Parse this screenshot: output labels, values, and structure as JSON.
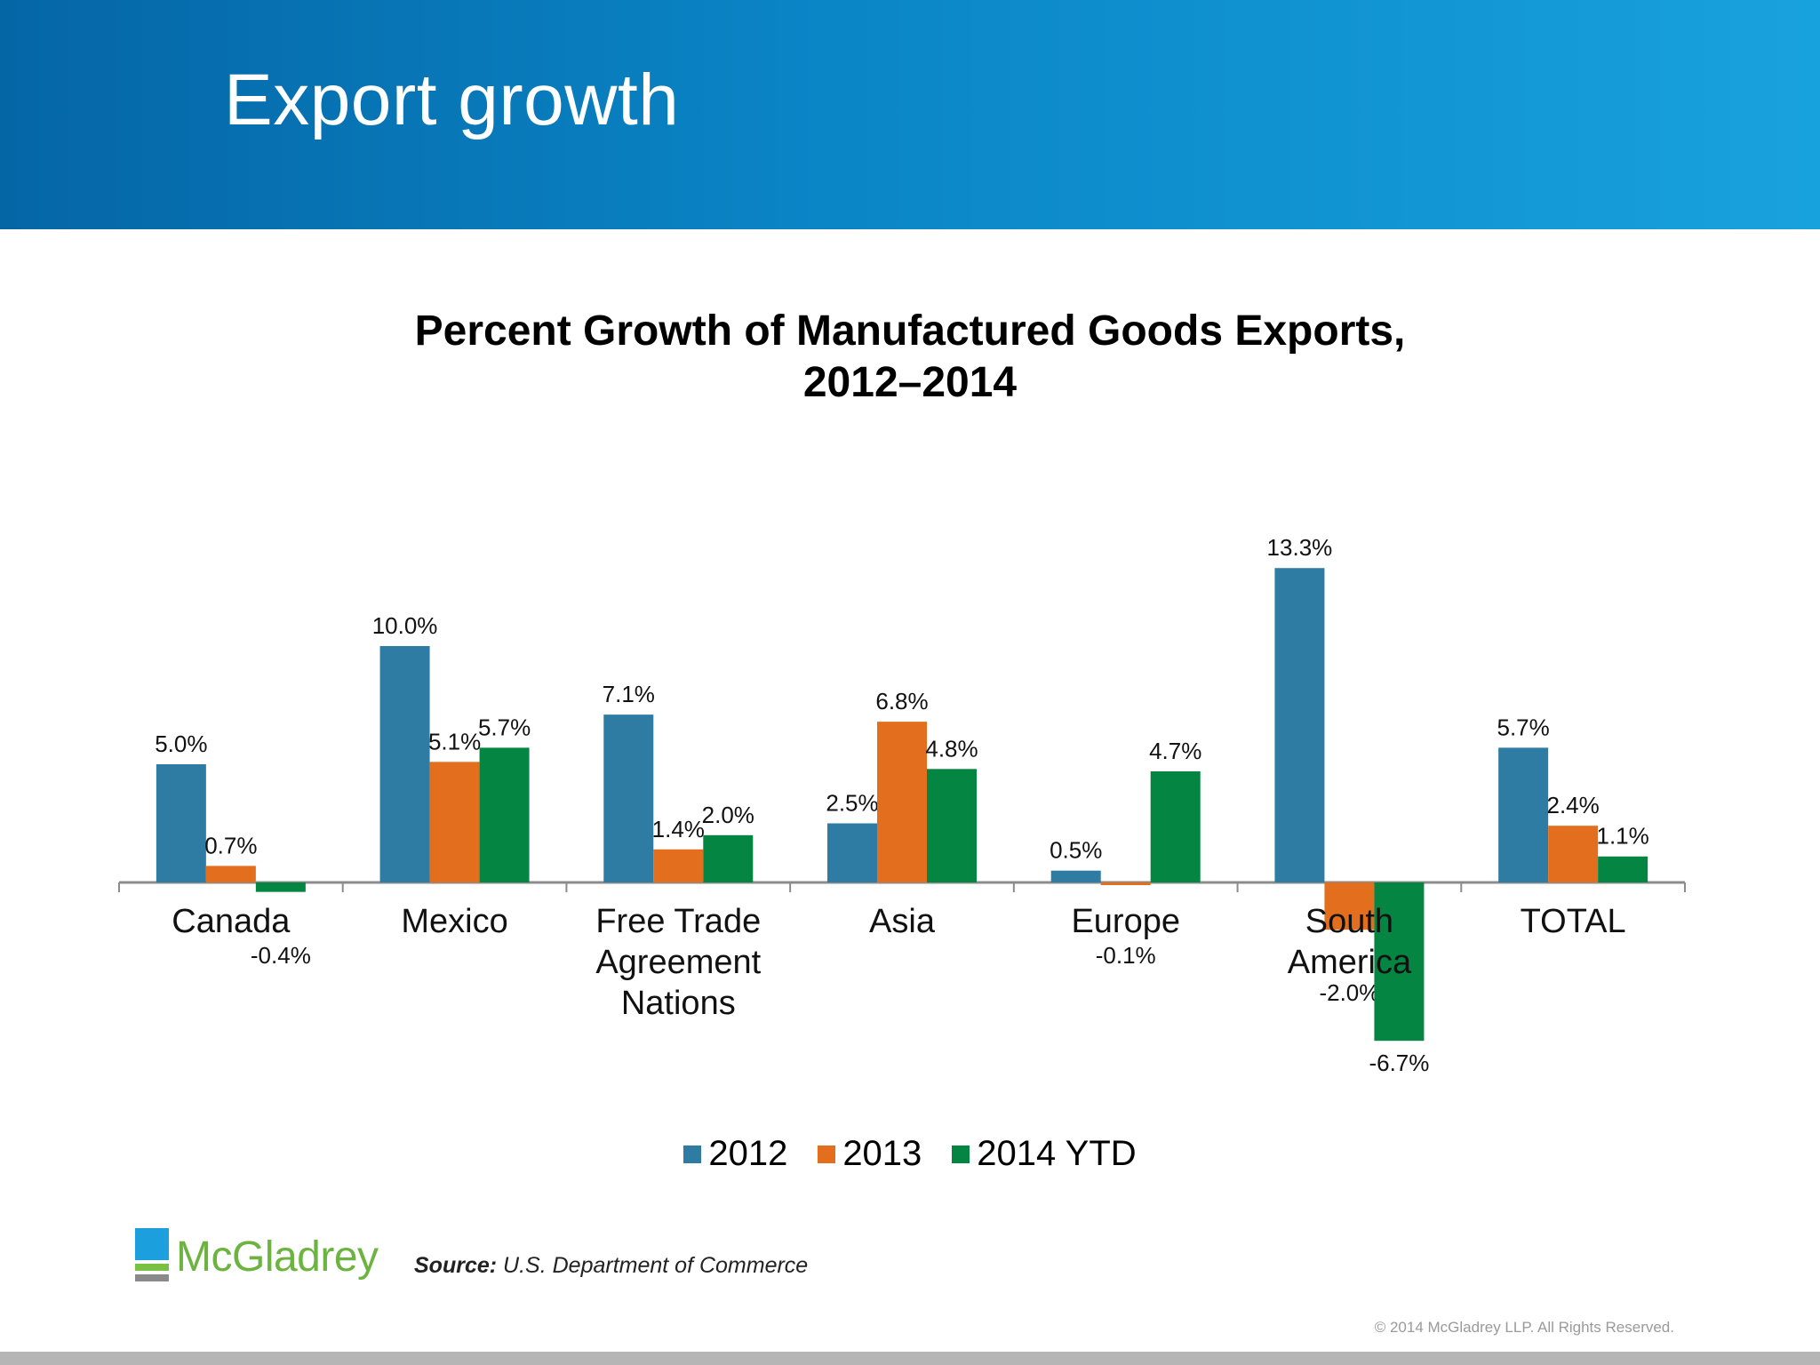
{
  "header": {
    "title": "Export growth"
  },
  "chart_data": {
    "type": "bar",
    "title_line1": "Percent Growth of Manufactured Goods Exports,",
    "title_line2": "2012–2014",
    "categories": [
      [
        "Canada"
      ],
      [
        "Mexico"
      ],
      [
        "Free Trade",
        "Agreement",
        "Nations"
      ],
      [
        "Asia"
      ],
      [
        "Europe"
      ],
      [
        "South",
        "America"
      ],
      [
        "TOTAL"
      ]
    ],
    "series": [
      {
        "name": "2012",
        "color": "#2e7ca3",
        "values": [
          5.0,
          10.0,
          7.1,
          2.5,
          0.5,
          13.3,
          5.7
        ]
      },
      {
        "name": "2013",
        "color": "#e36f1e",
        "values": [
          0.7,
          5.1,
          1.4,
          6.8,
          -0.1,
          -2.0,
          2.4
        ]
      },
      {
        "name": "2014 YTD",
        "color": "#058542",
        "values": [
          -0.4,
          5.7,
          2.0,
          4.8,
          4.7,
          -6.7,
          1.1
        ]
      }
    ],
    "value_format": "percent_one_decimal",
    "grid": false,
    "legend_position": "bottom"
  },
  "footer": {
    "logo_text": "McGladrey",
    "source_label": "Source:",
    "source_text": "U.S. Department of Commerce",
    "copyright": "© 2014 McGladrey LLP. All Rights Reserved."
  }
}
